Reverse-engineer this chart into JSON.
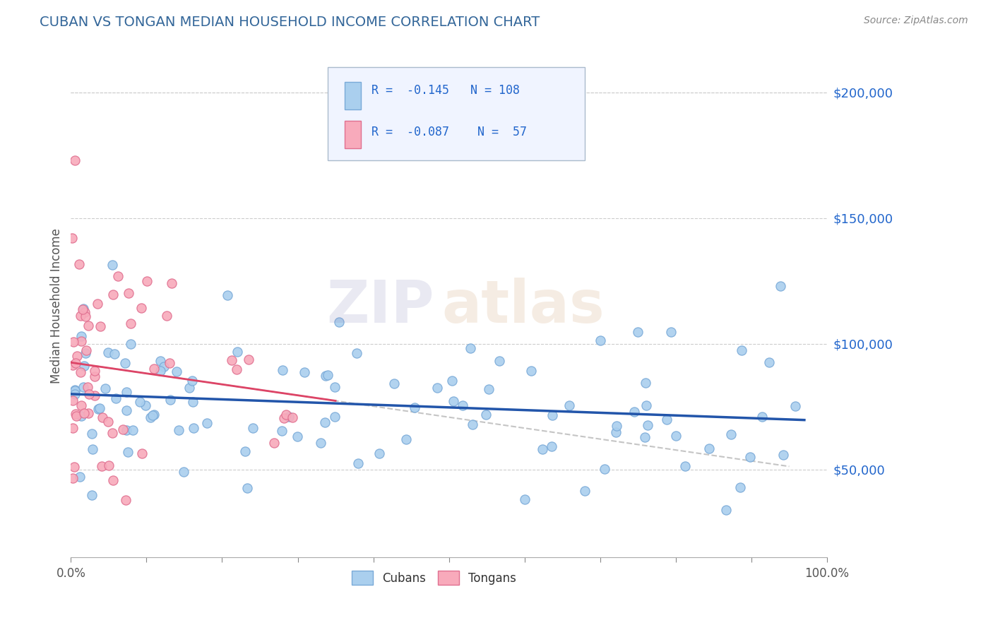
{
  "title": "CUBAN VS TONGAN MEDIAN HOUSEHOLD INCOME CORRELATION CHART",
  "source": "Source: ZipAtlas.com",
  "ylabel": "Median Household Income",
  "yticks": [
    50000,
    100000,
    150000,
    200000
  ],
  "ytick_labels": [
    "$50,000",
    "$100,000",
    "$150,000",
    "$200,000"
  ],
  "xlim": [
    0,
    100
  ],
  "ylim": [
    15000,
    215000
  ],
  "cuban_color": "#aacfee",
  "cuban_edge": "#7aaad8",
  "tongan_color": "#f8aabb",
  "tongan_edge": "#e07090",
  "cuban_line_color": "#2255aa",
  "tongan_line_color": "#dd4466",
  "tongan_dashed_color": "#bbbbbb",
  "R_cuban": -0.145,
  "N_cuban": 108,
  "R_tongan": -0.087,
  "N_tongan": 57,
  "legend_text_color": "#2266cc",
  "legend_label_color": "#333333",
  "watermark_zip_color": "#8888bb",
  "watermark_atlas_color": "#cc9966",
  "background_color": "#ffffff",
  "grid_color": "#cccccc",
  "title_color": "#336699",
  "cuban_seed": 42,
  "tongan_seed": 77,
  "legend_box_color": "#f0f4ff",
  "legend_box_edge": "#aabbcc"
}
